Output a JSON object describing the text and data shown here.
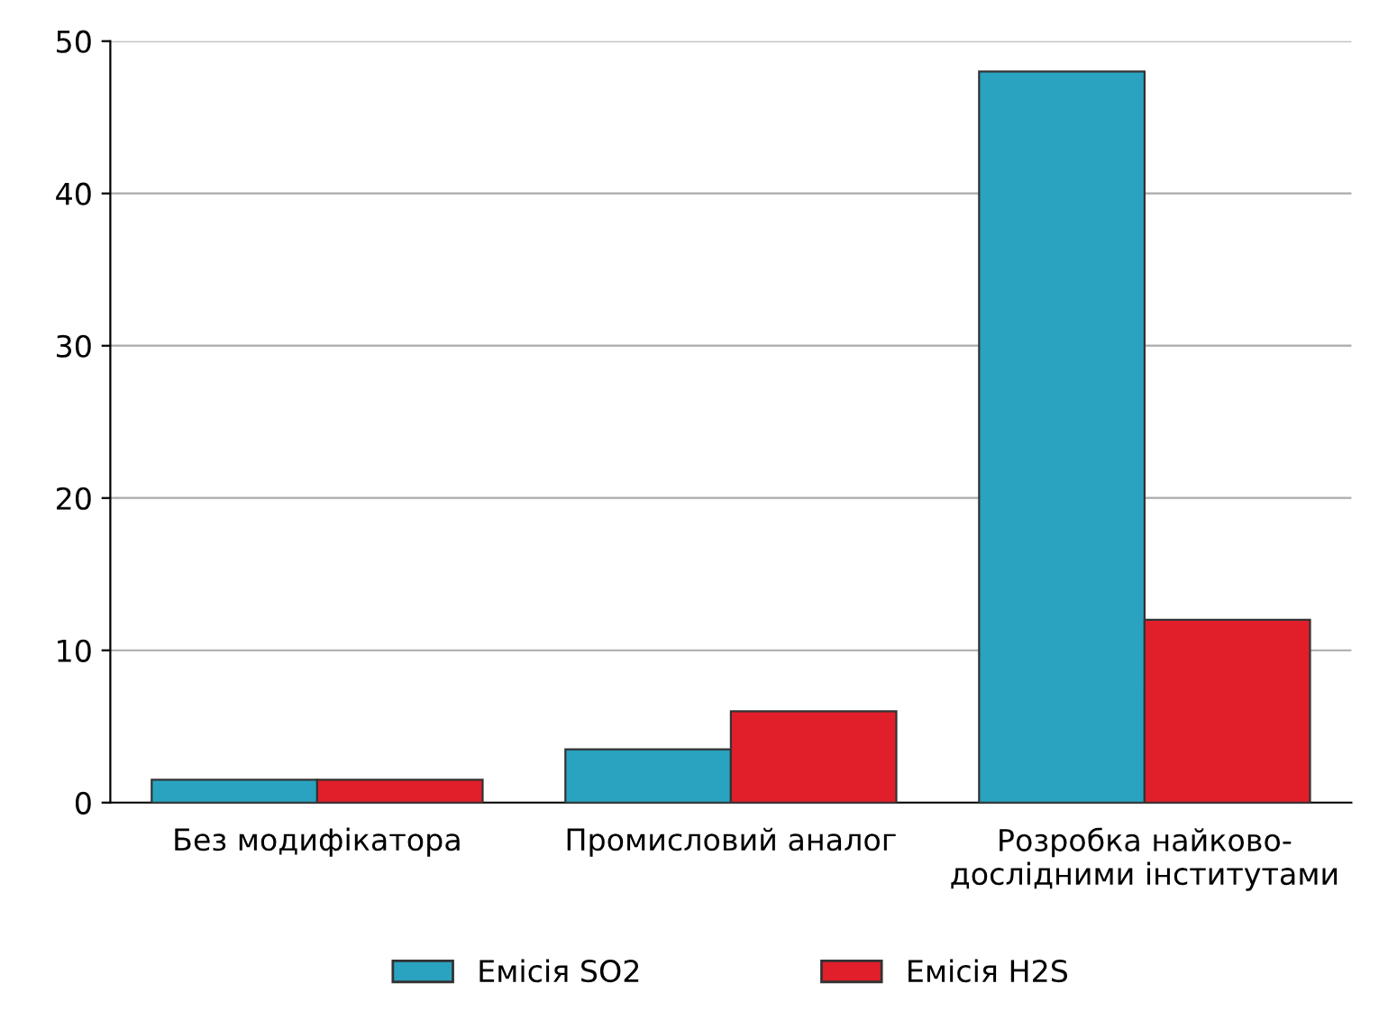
{
  "chart_data": {
    "type": "bar",
    "categories": [
      "Без модифікатора",
      "Промисловий аналог",
      "Розробка найково-\nдослідними інститутами"
    ],
    "series": [
      {
        "name": "Емісія SO2",
        "color": "#2aa3c0",
        "values": [
          1.5,
          3.5,
          48
        ]
      },
      {
        "name": "Емісія H2S",
        "color": "#e01f2b",
        "values": [
          1.5,
          6,
          12
        ]
      }
    ],
    "ylim": [
      0,
      50
    ],
    "yticks": [
      0,
      10,
      20,
      30,
      40,
      50
    ],
    "grid": "y",
    "legend": "bottom"
  }
}
